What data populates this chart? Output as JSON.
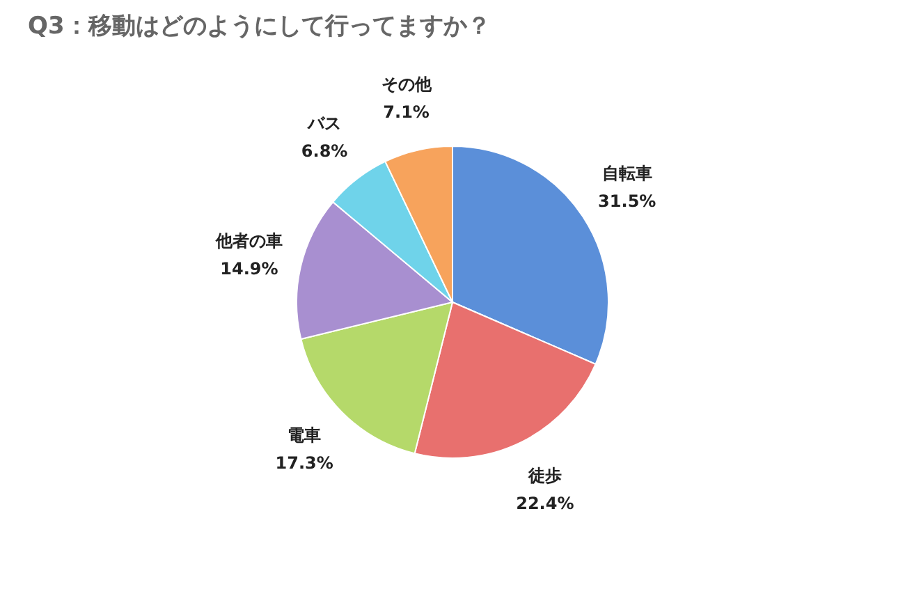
{
  "chart_data": {
    "type": "pie",
    "title": "Q3：移動はどのようにして行ってますか？",
    "categories": [
      "自転車",
      "徒歩",
      "電車",
      "他者の車",
      "バス",
      "その他"
    ],
    "values": [
      31.5,
      22.4,
      17.3,
      14.9,
      6.8,
      7.1
    ],
    "value_labels": [
      "31.5%",
      "22.4%",
      "17.3%",
      "14.9%",
      "6.8%",
      "7.1%"
    ],
    "colors": [
      "#5b8fd9",
      "#e8706e",
      "#b5d96a",
      "#a88fd0",
      "#6fd3ea",
      "#f7a35c"
    ],
    "legend": false
  }
}
